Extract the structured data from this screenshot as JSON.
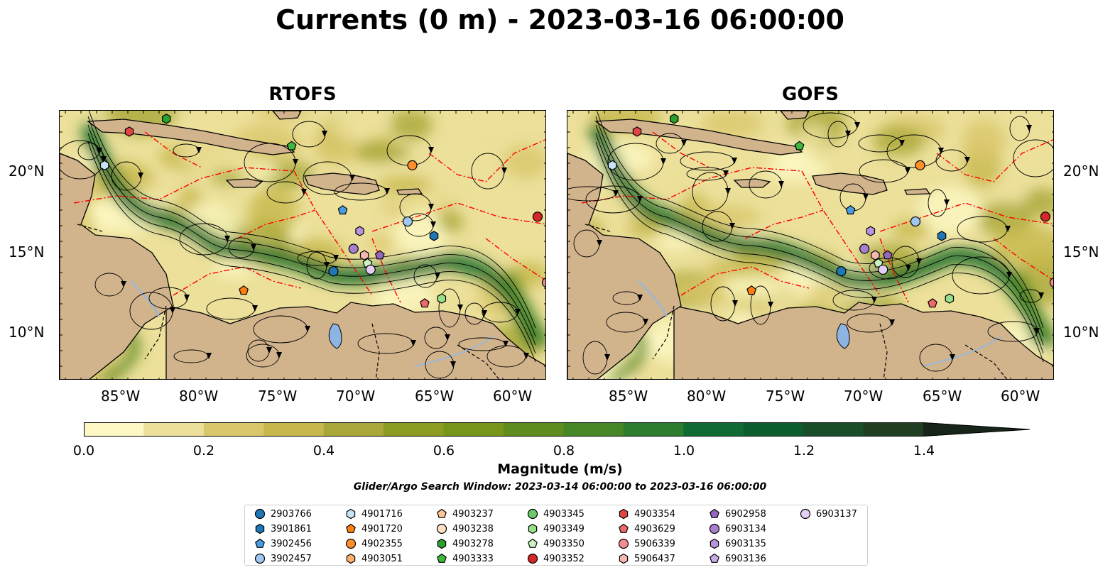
{
  "title": "Currents (0 m) - 2023-03-16 06:00:00",
  "panels": [
    {
      "title": "RTOFS"
    },
    {
      "title": "GOFS"
    }
  ],
  "axes": {
    "lat_ticks": [
      "20°N",
      "15°N",
      "10°N"
    ],
    "lon_ticks": [
      "85°W",
      "80°W",
      "75°W",
      "70°W",
      "65°W",
      "60°W"
    ]
  },
  "colorbar": {
    "label": "Magnitude (m/s)",
    "ticks": [
      "0.0",
      "0.2",
      "0.4",
      "0.6",
      "0.8",
      "1.0",
      "1.2",
      "1.4"
    ],
    "colors": [
      "#fdf7c3",
      "#ece09a",
      "#d9c76b",
      "#c6b84b",
      "#a9a73a",
      "#8c9c22",
      "#779519",
      "#5f8c1e",
      "#468624",
      "#2e7c2e",
      "#106b33",
      "#0c5e2f",
      "#1a4e2a",
      "#1f3e22",
      "#1c2e1a",
      "#16241a"
    ]
  },
  "search_window": "Glider/Argo Search Window: 2023-03-14 06:00:00 to 2023-03-16 06:00:00",
  "colors": {
    "land": "#d2b48c",
    "eez": "#ff0000",
    "water_low": "#fdf7c3",
    "water_high": "#0c5e2f",
    "lake": "#8eb4e3"
  },
  "legend": [
    {
      "id": "2903766",
      "marker": "circle",
      "color": "#1f77b4"
    },
    {
      "id": "3901861",
      "marker": "hexagon",
      "color": "#1f77b4"
    },
    {
      "id": "3902456",
      "marker": "pentagon",
      "color": "#4a9be0"
    },
    {
      "id": "3902457",
      "marker": "circle",
      "color": "#9fc8f0"
    },
    {
      "id": "4901716",
      "marker": "hexagon",
      "color": "#c7e4f7"
    },
    {
      "id": "4901720",
      "marker": "pentagon",
      "color": "#ff7f0e"
    },
    {
      "id": "4902355",
      "marker": "circle",
      "color": "#ff8f2a"
    },
    {
      "id": "4903051",
      "marker": "hexagon",
      "color": "#ffb06a"
    },
    {
      "id": "4903237",
      "marker": "pentagon",
      "color": "#ffc594"
    },
    {
      "id": "4903238",
      "marker": "circle",
      "color": "#ffe0c2"
    },
    {
      "id": "4903278",
      "marker": "hexagon",
      "color": "#2ca02c"
    },
    {
      "id": "4903333",
      "marker": "pentagon",
      "color": "#3fb83f"
    },
    {
      "id": "4903345",
      "marker": "circle",
      "color": "#6cc96c"
    },
    {
      "id": "4903349",
      "marker": "hexagon",
      "color": "#98df8a"
    },
    {
      "id": "4903350",
      "marker": "pentagon",
      "color": "#c9f2c0"
    },
    {
      "id": "4903352",
      "marker": "circle",
      "color": "#d62728"
    },
    {
      "id": "4903354",
      "marker": "hexagon",
      "color": "#e04546"
    },
    {
      "id": "4903629",
      "marker": "pentagon",
      "color": "#ec6a6b"
    },
    {
      "id": "5906339",
      "marker": "circle",
      "color": "#f28e8f"
    },
    {
      "id": "5906437",
      "marker": "hexagon",
      "color": "#f7b6b0"
    },
    {
      "id": "6902958",
      "marker": "pentagon",
      "color": "#9467bd"
    },
    {
      "id": "6903134",
      "marker": "circle",
      "color": "#a77fcf"
    },
    {
      "id": "6903135",
      "marker": "hexagon",
      "color": "#b794dc"
    },
    {
      "id": "6903136",
      "marker": "pentagon",
      "color": "#c9ade6"
    },
    {
      "id": "6903137",
      "marker": "circle",
      "color": "#e3cff5"
    }
  ],
  "floats": {
    "rtofs": [
      {
        "id": "4903352",
        "lon": -58.6,
        "lat": 17.2
      },
      {
        "id": "4902355",
        "lon": -66.7,
        "lat": 20.4
      },
      {
        "id": "3901861",
        "lon": -65.3,
        "lat": 16.0
      },
      {
        "id": "3902457",
        "lon": -67.0,
        "lat": 16.9
      },
      {
        "id": "2903766",
        "lon": -71.8,
        "lat": 13.8
      },
      {
        "id": "4901716",
        "lon": -86.6,
        "lat": 20.4
      },
      {
        "id": "4903354",
        "lon": -85.0,
        "lat": 22.5
      },
      {
        "id": "4903278",
        "lon": -82.6,
        "lat": 23.3
      },
      {
        "id": "4903333",
        "lon": -74.5,
        "lat": 21.6
      },
      {
        "id": "3902456",
        "lon": -71.2,
        "lat": 17.6
      },
      {
        "id": "6903135",
        "lon": -70.1,
        "lat": 16.3
      },
      {
        "id": "6903134",
        "lon": -70.5,
        "lat": 15.2
      },
      {
        "id": "5906437",
        "lon": -69.8,
        "lat": 14.8
      },
      {
        "id": "4903350",
        "lon": -69.6,
        "lat": 14.3
      },
      {
        "id": "6903137",
        "lon": -69.4,
        "lat": 13.9
      },
      {
        "id": "6902958",
        "lon": -68.8,
        "lat": 14.8
      },
      {
        "id": "4903349",
        "lon": -64.8,
        "lat": 12.1
      },
      {
        "id": "4903629",
        "lon": -65.9,
        "lat": 11.8
      },
      {
        "id": "4901720",
        "lon": -77.6,
        "lat": 12.6
      },
      {
        "id": "5906339",
        "lon": -58.0,
        "lat": 13.1
      }
    ],
    "gofs": [
      {
        "id": "4903352",
        "lon": -58.6,
        "lat": 17.2
      },
      {
        "id": "4902355",
        "lon": -66.7,
        "lat": 20.4
      },
      {
        "id": "3901861",
        "lon": -65.3,
        "lat": 16.0
      },
      {
        "id": "3902457",
        "lon": -67.0,
        "lat": 16.9
      },
      {
        "id": "2903766",
        "lon": -71.8,
        "lat": 13.8
      },
      {
        "id": "4901716",
        "lon": -86.6,
        "lat": 20.4
      },
      {
        "id": "4903354",
        "lon": -85.0,
        "lat": 22.5
      },
      {
        "id": "4903278",
        "lon": -82.6,
        "lat": 23.3
      },
      {
        "id": "4903333",
        "lon": -74.5,
        "lat": 21.6
      },
      {
        "id": "3902456",
        "lon": -71.2,
        "lat": 17.6
      },
      {
        "id": "6903135",
        "lon": -69.9,
        "lat": 16.3
      },
      {
        "id": "6903134",
        "lon": -70.3,
        "lat": 15.2
      },
      {
        "id": "5906437",
        "lon": -69.6,
        "lat": 14.8
      },
      {
        "id": "4903350",
        "lon": -69.4,
        "lat": 14.3
      },
      {
        "id": "6903137",
        "lon": -69.1,
        "lat": 13.9
      },
      {
        "id": "6902958",
        "lon": -68.8,
        "lat": 14.8
      },
      {
        "id": "4903349",
        "lon": -64.8,
        "lat": 12.1
      },
      {
        "id": "4903629",
        "lon": -65.9,
        "lat": 11.8
      },
      {
        "id": "4901720",
        "lon": -77.6,
        "lat": 12.6
      },
      {
        "id": "5906339",
        "lon": -58.0,
        "lat": 13.1
      }
    ]
  },
  "chart_data": {
    "type": "heatmap",
    "title": "Currents (0 m) - 2023-03-16 06:00:00",
    "panels": [
      "RTOFS",
      "GOFS"
    ],
    "xlim": [
      -89.5,
      -58.0
    ],
    "ylim": [
      7.0,
      23.8
    ],
    "colorbar_range": [
      0.0,
      1.5
    ],
    "colorbar_extend": "max",
    "colorbar_label": "Magnitude (m/s)"
  }
}
